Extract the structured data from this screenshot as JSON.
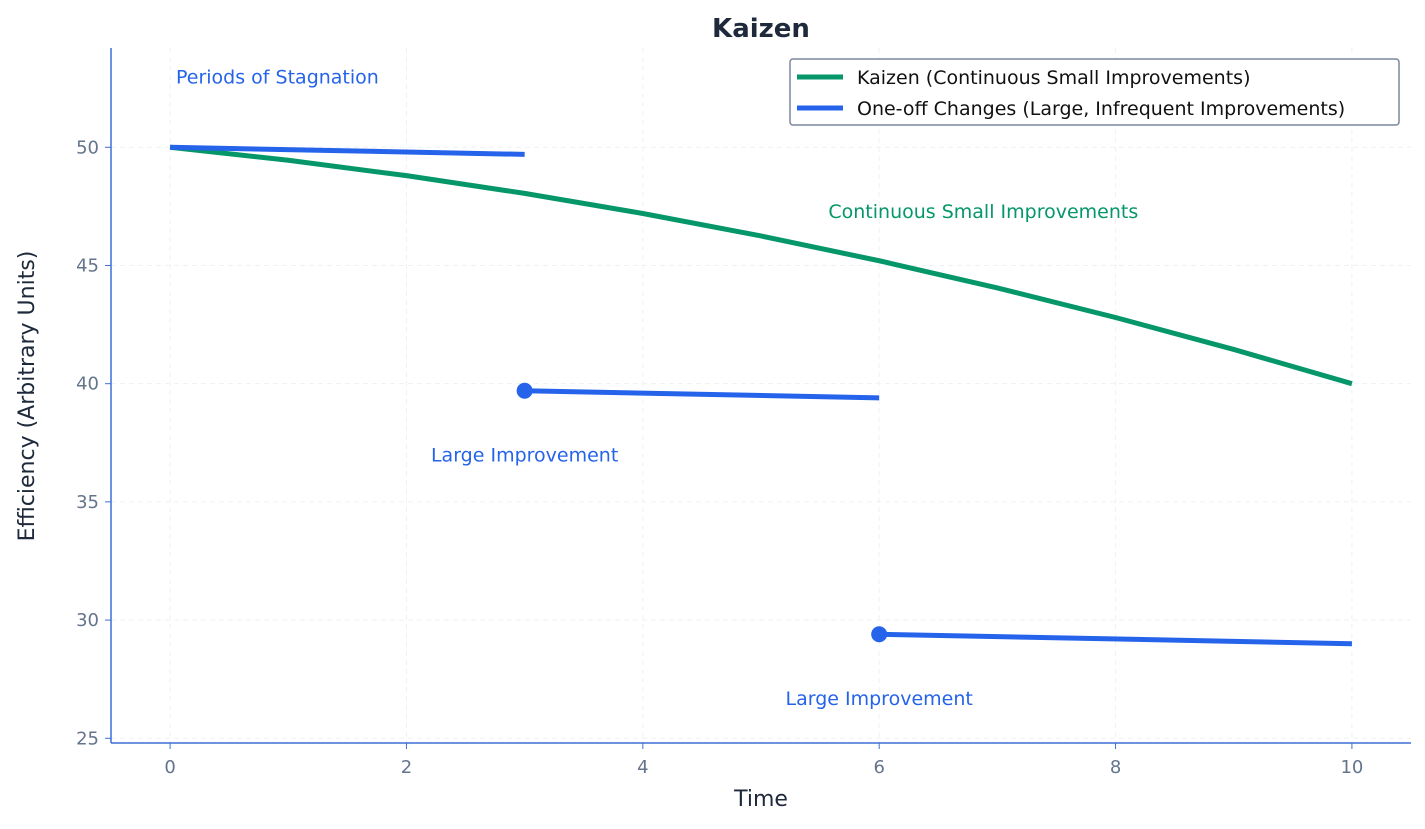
{
  "chart_data": {
    "type": "line",
    "title": "Kaizen",
    "xlabel": "Time",
    "ylabel": "Efficiency (Arbitrary Units)",
    "xlim": [
      -0.5,
      10.5
    ],
    "ylim": [
      24.8,
      54.2
    ],
    "xticks": [
      0,
      2,
      4,
      6,
      8,
      10
    ],
    "yticks": [
      25,
      30,
      35,
      40,
      45,
      50
    ],
    "grid": true,
    "legend_position": "top-right",
    "colors": {
      "kaizen": "#059669",
      "oneoff": "#2563eb",
      "axis": "#3b6fd6",
      "ticks": "#64748b",
      "title": "#1e293b"
    },
    "series": [
      {
        "name": "Kaizen (Continuous Small Improvements)",
        "color": "#059669",
        "x": [
          0,
          1,
          2,
          3,
          4,
          5,
          6,
          7,
          8,
          9,
          10
        ],
        "y": [
          50,
          49.45,
          48.8,
          48.05,
          47.2,
          46.25,
          45.2,
          44.05,
          42.8,
          41.45,
          40
        ]
      },
      {
        "name": "One-off Changes (Large, Infrequent Improvements)",
        "color": "#2563eb",
        "segments": [
          {
            "x": [
              0,
              3
            ],
            "y": [
              50,
              49.7
            ]
          },
          {
            "x": [
              3,
              6
            ],
            "y": [
              39.7,
              39.4
            ]
          },
          {
            "x": [
              6,
              10
            ],
            "y": [
              29.4,
              29.0
            ]
          }
        ],
        "markers": [
          {
            "x": 3,
            "y": 39.7
          },
          {
            "x": 6,
            "y": 29.4
          }
        ]
      }
    ],
    "annotations": [
      {
        "text": "Periods of Stagnation",
        "x": 0.05,
        "y": 53.0,
        "color": "#2563eb",
        "anchor": "start"
      },
      {
        "text": "Continuous Small Improvements",
        "x": 5.57,
        "y": 47.3,
        "color": "#059669",
        "anchor": "start"
      },
      {
        "text": "Large Improvement",
        "x": 3,
        "y": 37.0,
        "color": "#2563eb",
        "anchor": "middle"
      },
      {
        "text": "Large Improvement",
        "x": 6,
        "y": 26.7,
        "color": "#2563eb",
        "anchor": "middle"
      }
    ]
  }
}
